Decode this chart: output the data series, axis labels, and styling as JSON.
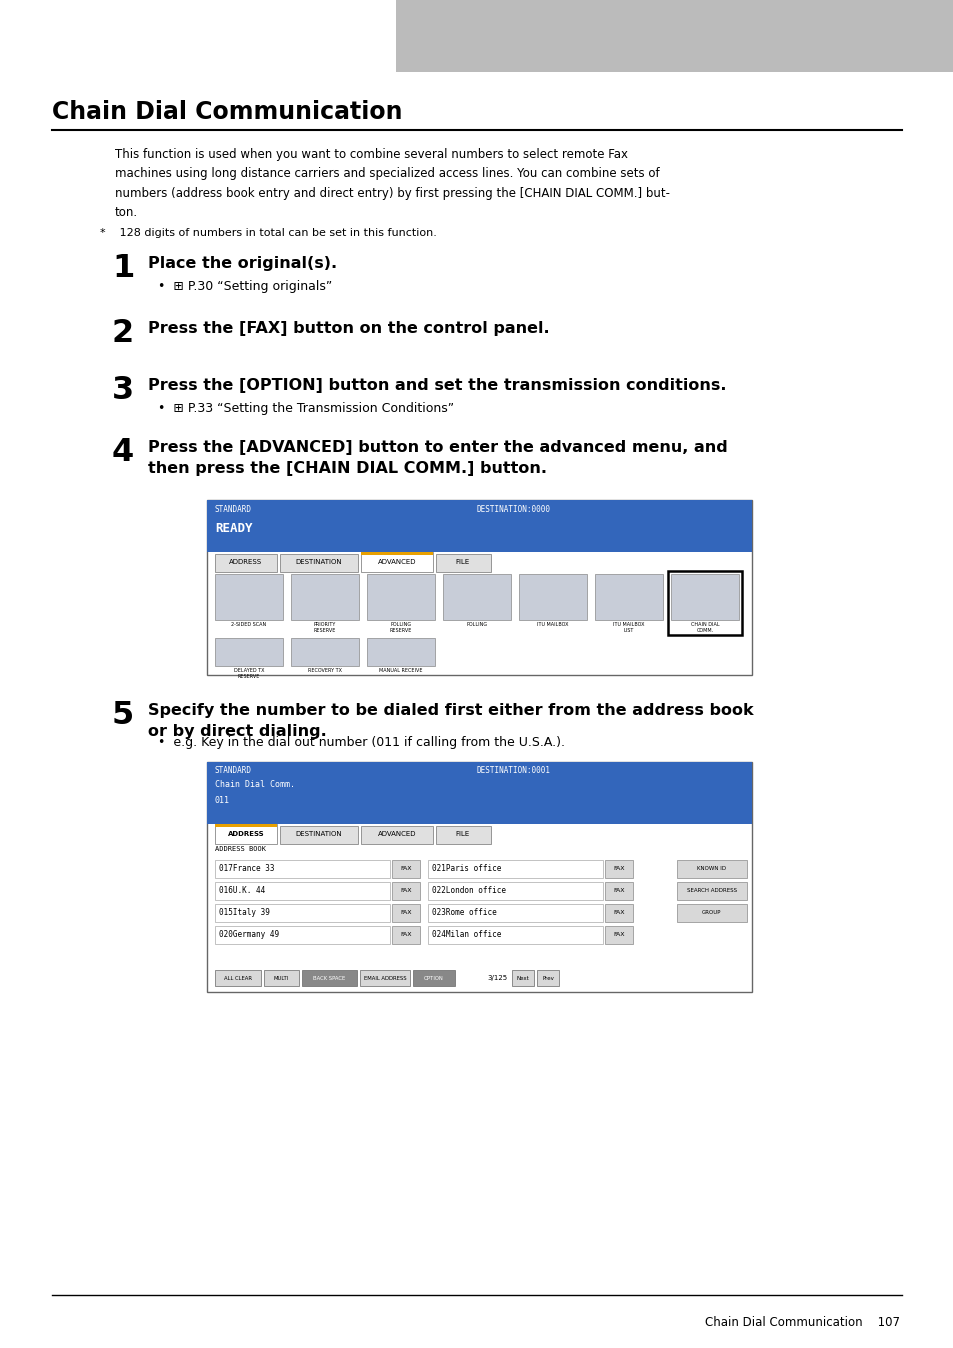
{
  "title": "Chain Dial Communication",
  "header_bar_color": "#b0b0b0",
  "bg_color": "#ffffff",
  "text_color": "#000000",
  "blue_color": "#3366bb",
  "orange_color": "#e8a000",
  "tab_bg": "#e8e8e8",
  "icon_bg": "#d0d5de",
  "footer_text": "Chain Dial Communication    107",
  "intro_text": "This function is used when you want to combine several numbers to select remote Fax\nmachines using long distance carriers and specialized access lines. You can combine sets of\nnumbers (address book entry and direct entry) by first pressing the [CHAIN DIAL COMM.] but-\nton.",
  "note_text": "*    128 digits of numbers in total can be set in this function.",
  "step1_title": "Place the original(s).",
  "step1_bullet": "•  ⊞ P.30 “Setting originals”",
  "step2_title": "Press the [FAX] button on the control panel.",
  "step3_title": "Press the [OPTION] button and set the transmission conditions.",
  "step3_bullet": "•  ⊞ P.33 “Setting the Transmission Conditions”",
  "step4_title": "Press the [ADVANCED] button to enter the advanced menu, and\nthen press the [CHAIN DIAL COMM.] button.",
  "step5_title": "Specify the number to be dialed first either from the address book\nor by direct dialing.",
  "step5_bullet": "•  e.g. Key in the dial out number (011 if calling from the U.S.A.).",
  "screen1_labels": [
    "2-SIDED SCAN",
    "PRIORITY\nRESERVE",
    "POLLING\nRESERVE",
    "POLLING",
    "ITU MAILBOX",
    "ITU MAILBOX\nLIST",
    "CHAIN DIAL\nCOMM."
  ],
  "screen1_row2_labels": [
    "DELAYED TX\nRESERVE",
    "RECOVERY TX",
    "MANUAL RECEIVE"
  ],
  "addr_left": [
    "017France 33",
    "016U.K. 44",
    "015Italy 39",
    "020Germany 49"
  ],
  "addr_right": [
    "021Paris office",
    "022London office",
    "023Rome office",
    "024Milan office"
  ],
  "btm_buttons": [
    "ALL CLEAR",
    "MULTI",
    "BACK SPACE",
    "EMAIL ADDRESS",
    "OPTION"
  ]
}
